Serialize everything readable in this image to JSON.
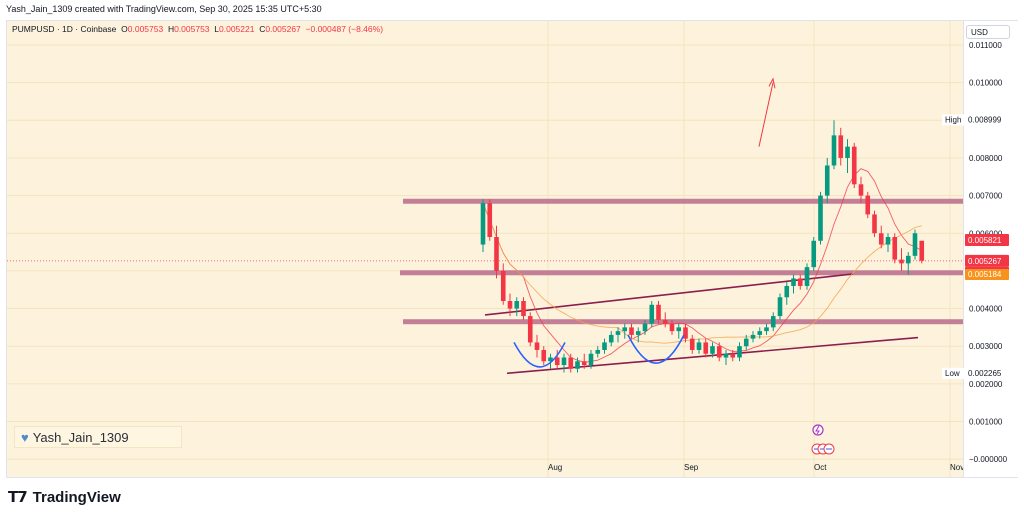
{
  "header": {
    "created_line": "Yash_Jain_1309 created with TradingView.com, Sep 30, 2025 15:35 UTC+5:30"
  },
  "legend": {
    "symbol": "PUMPUSD · 1D · Coinbase",
    "open_label": "O",
    "open": "0.005753",
    "high_label": "H",
    "high": "0.005753",
    "low_label": "L",
    "low": "0.005221",
    "close_label": "C",
    "close": "0.005267",
    "change": "−0.000487 (−8.46%)"
  },
  "currency": "USD",
  "watermark": "Yash_Jain_1309",
  "footer_brand": "TradingView",
  "badges": {
    "high_label": "High",
    "high_value": "0.008999",
    "low_label": "Low",
    "low_value": "0.002265",
    "price_a": "0.005821",
    "price_b": "0.005267",
    "countdown": "13:54:07",
    "price_c": "0.005184"
  },
  "colors": {
    "up": "#089981",
    "down": "#f23645",
    "background": "#fdf3dd",
    "zone": "#b96a89",
    "trendline": "#8b1e4f",
    "ma_fast": "#f23645",
    "ma_slow": "#f7a24b",
    "pattern": "#2962ff"
  },
  "chart_data": {
    "type": "candlestick",
    "y_ticks": [
      "0.011000",
      "0.010000",
      "0.009000",
      "0.008000",
      "0.007000",
      "0.006000",
      "0.005000",
      "0.004000",
      "0.003000",
      "0.002000",
      "0.001000",
      "−0.000000"
    ],
    "x_labels": [
      "Aug",
      "Sep",
      "Oct",
      "Nov"
    ],
    "ylim": [
      -5e-05,
      0.0111
    ],
    "horizontal_zones": [
      0.00685,
      0.00495,
      0.00365
    ],
    "candles": [
      {
        "o": 0.0057,
        "h": 0.0069,
        "l": 0.0055,
        "c": 0.0068
      },
      {
        "o": 0.0068,
        "h": 0.0069,
        "l": 0.0058,
        "c": 0.0059
      },
      {
        "o": 0.0059,
        "h": 0.0062,
        "l": 0.0048,
        "c": 0.005
      },
      {
        "o": 0.005,
        "h": 0.0052,
        "l": 0.0041,
        "c": 0.0042
      },
      {
        "o": 0.0042,
        "h": 0.0044,
        "l": 0.0038,
        "c": 0.004
      },
      {
        "o": 0.004,
        "h": 0.0043,
        "l": 0.0038,
        "c": 0.0042
      },
      {
        "o": 0.0042,
        "h": 0.0043,
        "l": 0.0037,
        "c": 0.0038
      },
      {
        "o": 0.0038,
        "h": 0.0039,
        "l": 0.003,
        "c": 0.0031
      },
      {
        "o": 0.0031,
        "h": 0.0033,
        "l": 0.0027,
        "c": 0.0029
      },
      {
        "o": 0.0029,
        "h": 0.003,
        "l": 0.0025,
        "c": 0.0026
      },
      {
        "o": 0.0026,
        "h": 0.0028,
        "l": 0.0024,
        "c": 0.0027
      },
      {
        "o": 0.0027,
        "h": 0.0029,
        "l": 0.0024,
        "c": 0.0025
      },
      {
        "o": 0.0025,
        "h": 0.0028,
        "l": 0.0023,
        "c": 0.0027
      },
      {
        "o": 0.0027,
        "h": 0.0028,
        "l": 0.0023,
        "c": 0.0024
      },
      {
        "o": 0.0024,
        "h": 0.0027,
        "l": 0.0023,
        "c": 0.0026
      },
      {
        "o": 0.0026,
        "h": 0.0028,
        "l": 0.0024,
        "c": 0.0025
      },
      {
        "o": 0.0025,
        "h": 0.0029,
        "l": 0.0024,
        "c": 0.0028
      },
      {
        "o": 0.0028,
        "h": 0.003,
        "l": 0.0027,
        "c": 0.0029
      },
      {
        "o": 0.0029,
        "h": 0.0032,
        "l": 0.0028,
        "c": 0.0031
      },
      {
        "o": 0.0031,
        "h": 0.0034,
        "l": 0.003,
        "c": 0.0033
      },
      {
        "o": 0.0033,
        "h": 0.0035,
        "l": 0.0031,
        "c": 0.0034
      },
      {
        "o": 0.0034,
        "h": 0.0036,
        "l": 0.0032,
        "c": 0.0035
      },
      {
        "o": 0.0035,
        "h": 0.0036,
        "l": 0.0032,
        "c": 0.0033
      },
      {
        "o": 0.0033,
        "h": 0.0035,
        "l": 0.0031,
        "c": 0.0034
      },
      {
        "o": 0.0034,
        "h": 0.0037,
        "l": 0.0033,
        "c": 0.0036
      },
      {
        "o": 0.0036,
        "h": 0.0042,
        "l": 0.0035,
        "c": 0.0041
      },
      {
        "o": 0.0041,
        "h": 0.0042,
        "l": 0.0036,
        "c": 0.0037
      },
      {
        "o": 0.0037,
        "h": 0.0039,
        "l": 0.0035,
        "c": 0.0036
      },
      {
        "o": 0.0036,
        "h": 0.0037,
        "l": 0.0033,
        "c": 0.0034
      },
      {
        "o": 0.0034,
        "h": 0.0036,
        "l": 0.0032,
        "c": 0.0035
      },
      {
        "o": 0.0035,
        "h": 0.0036,
        "l": 0.0031,
        "c": 0.0032
      },
      {
        "o": 0.0032,
        "h": 0.0033,
        "l": 0.0028,
        "c": 0.0029
      },
      {
        "o": 0.0029,
        "h": 0.0032,
        "l": 0.0028,
        "c": 0.0031
      },
      {
        "o": 0.0031,
        "h": 0.0032,
        "l": 0.0027,
        "c": 0.0028
      },
      {
        "o": 0.0028,
        "h": 0.0031,
        "l": 0.0027,
        "c": 0.003
      },
      {
        "o": 0.003,
        "h": 0.0031,
        "l": 0.0026,
        "c": 0.0027
      },
      {
        "o": 0.0027,
        "h": 0.0029,
        "l": 0.0025,
        "c": 0.0028
      },
      {
        "o": 0.0028,
        "h": 0.0029,
        "l": 0.0026,
        "c": 0.0027
      },
      {
        "o": 0.0027,
        "h": 0.0031,
        "l": 0.0026,
        "c": 0.003
      },
      {
        "o": 0.003,
        "h": 0.0033,
        "l": 0.0029,
        "c": 0.0032
      },
      {
        "o": 0.0032,
        "h": 0.0034,
        "l": 0.0031,
        "c": 0.0033
      },
      {
        "o": 0.0033,
        "h": 0.0035,
        "l": 0.0032,
        "c": 0.0034
      },
      {
        "o": 0.0034,
        "h": 0.0036,
        "l": 0.0033,
        "c": 0.0035
      },
      {
        "o": 0.0035,
        "h": 0.0039,
        "l": 0.0034,
        "c": 0.0038
      },
      {
        "o": 0.0038,
        "h": 0.0044,
        "l": 0.0037,
        "c": 0.0043
      },
      {
        "o": 0.0043,
        "h": 0.0047,
        "l": 0.0041,
        "c": 0.0046
      },
      {
        "o": 0.0046,
        "h": 0.0049,
        "l": 0.0044,
        "c": 0.0048
      },
      {
        "o": 0.0048,
        "h": 0.0049,
        "l": 0.0045,
        "c": 0.0046
      },
      {
        "o": 0.0046,
        "h": 0.0052,
        "l": 0.0045,
        "c": 0.0051
      },
      {
        "o": 0.0051,
        "h": 0.0059,
        "l": 0.005,
        "c": 0.0058
      },
      {
        "o": 0.0058,
        "h": 0.0071,
        "l": 0.0057,
        "c": 0.007
      },
      {
        "o": 0.007,
        "h": 0.008,
        "l": 0.0068,
        "c": 0.0078
      },
      {
        "o": 0.0078,
        "h": 0.009,
        "l": 0.0077,
        "c": 0.0086
      },
      {
        "o": 0.0086,
        "h": 0.0088,
        "l": 0.0078,
        "c": 0.008
      },
      {
        "o": 0.008,
        "h": 0.0085,
        "l": 0.0076,
        "c": 0.0083
      },
      {
        "o": 0.0083,
        "h": 0.0084,
        "l": 0.0072,
        "c": 0.0073
      },
      {
        "o": 0.0073,
        "h": 0.0075,
        "l": 0.0068,
        "c": 0.007
      },
      {
        "o": 0.007,
        "h": 0.0071,
        "l": 0.0064,
        "c": 0.0065
      },
      {
        "o": 0.0065,
        "h": 0.0066,
        "l": 0.0059,
        "c": 0.006
      },
      {
        "o": 0.006,
        "h": 0.0062,
        "l": 0.0056,
        "c": 0.0057
      },
      {
        "o": 0.0057,
        "h": 0.006,
        "l": 0.0055,
        "c": 0.0059
      },
      {
        "o": 0.0059,
        "h": 0.006,
        "l": 0.0052,
        "c": 0.0053
      },
      {
        "o": 0.0053,
        "h": 0.0056,
        "l": 0.005,
        "c": 0.0052
      },
      {
        "o": 0.0052,
        "h": 0.0055,
        "l": 0.0049,
        "c": 0.0054
      },
      {
        "o": 0.0054,
        "h": 0.0061,
        "l": 0.0053,
        "c": 0.006
      },
      {
        "o": 0.0058,
        "h": 0.0058,
        "l": 0.0052,
        "c": 0.00527
      }
    ]
  }
}
